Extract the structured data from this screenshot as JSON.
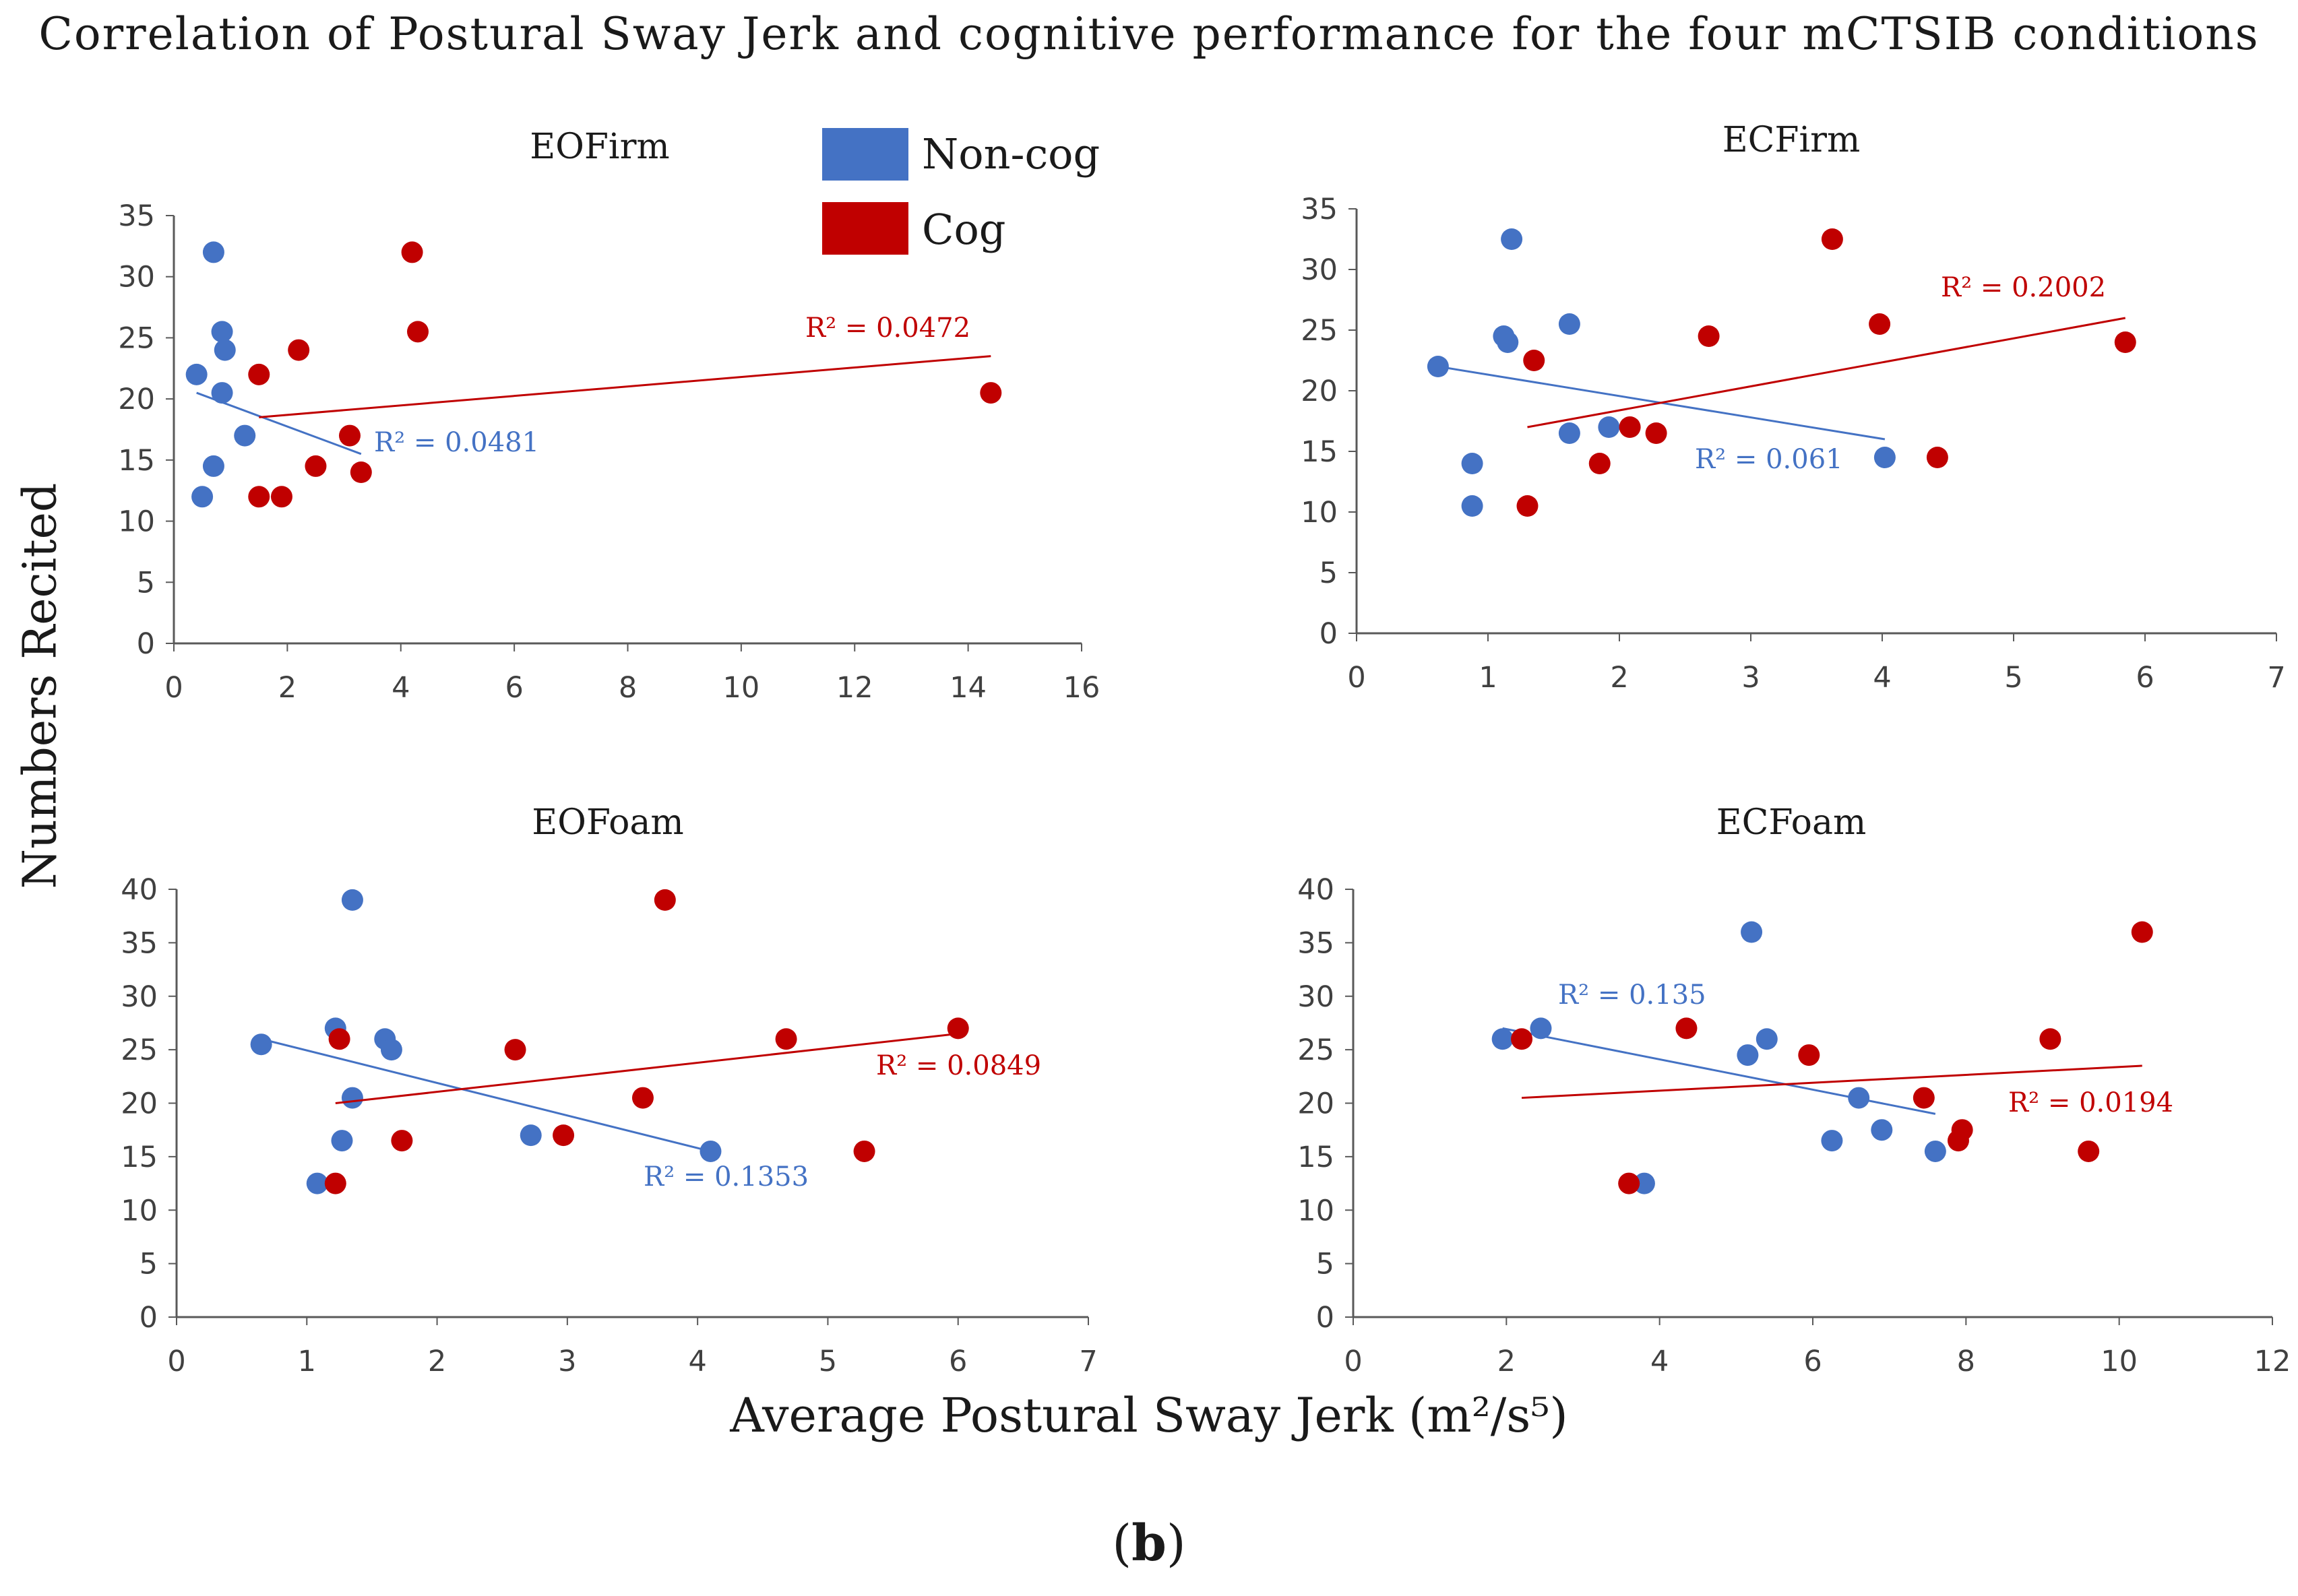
{
  "figure": {
    "title": "Correlation of Postural Sway Jerk and cognitive performance for the four mCTSIB conditions",
    "ylabel": "Numbers Recited",
    "xlabel": "Average Postural Sway Jerk (m²/s⁵)",
    "caption_open": "(",
    "caption_letter": "b",
    "caption_close": ")"
  },
  "colors": {
    "non_cog": "#4472C4",
    "cog": "#C00000",
    "axis": "#595959"
  },
  "legend": {
    "position": "top-center",
    "entries": [
      "Non-cog",
      "Cog"
    ]
  },
  "chart_data": [
    {
      "type": "scatter",
      "title": "EOFirm",
      "xlim": [
        0,
        16
      ],
      "xticks": [
        0,
        2,
        4,
        6,
        8,
        10,
        12,
        14,
        16
      ],
      "ylim": [
        0,
        35
      ],
      "yticks": [
        0,
        5,
        10,
        15,
        20,
        25,
        30,
        35
      ],
      "series": [
        {
          "name": "Non-cog",
          "color": "#4472C4",
          "points": [
            [
              0.4,
              22
            ],
            [
              0.5,
              12
            ],
            [
              0.7,
              14.5
            ],
            [
              0.7,
              32
            ],
            [
              0.85,
              20.5
            ],
            [
              0.85,
              25.5
            ],
            [
              0.9,
              24
            ],
            [
              1.25,
              17
            ]
          ],
          "trendline": {
            "x": [
              0.4,
              3.3
            ],
            "y": [
              20.5,
              15.5
            ]
          },
          "r2_label": "R² = 0.0481"
        },
        {
          "name": "Cog",
          "color": "#C00000",
          "points": [
            [
              1.5,
              22
            ],
            [
              1.5,
              12
            ],
            [
              1.9,
              12
            ],
            [
              2.2,
              24
            ],
            [
              2.5,
              14.5
            ],
            [
              3.1,
              17
            ],
            [
              3.3,
              14
            ],
            [
              4.2,
              32
            ],
            [
              4.3,
              25.5
            ],
            [
              14.4,
              20.5
            ]
          ],
          "trendline": {
            "x": [
              1.5,
              14.4
            ],
            "y": [
              18.5,
              23.5
            ]
          },
          "r2_label": "R² = 0.0472"
        }
      ]
    },
    {
      "type": "scatter",
      "title": "ECFirm",
      "xlim": [
        0,
        7
      ],
      "xticks": [
        0,
        1,
        2,
        3,
        4,
        5,
        6,
        7
      ],
      "ylim": [
        0,
        35
      ],
      "yticks": [
        0,
        5,
        10,
        15,
        20,
        25,
        30,
        35
      ],
      "series": [
        {
          "name": "Non-cog",
          "color": "#4472C4",
          "points": [
            [
              0.62,
              22
            ],
            [
              0.88,
              14
            ],
            [
              0.88,
              10.5
            ],
            [
              1.12,
              24.5
            ],
            [
              1.15,
              24
            ],
            [
              1.18,
              32.5
            ],
            [
              1.62,
              25.5
            ],
            [
              1.62,
              16.5
            ],
            [
              1.92,
              17
            ],
            [
              4.02,
              14.5
            ]
          ],
          "trendline": {
            "x": [
              0.62,
              4.02
            ],
            "y": [
              22,
              16
            ]
          },
          "r2_label": "R² = 0.061"
        },
        {
          "name": "Cog",
          "color": "#C00000",
          "points": [
            [
              1.3,
              10.5
            ],
            [
              1.35,
              22.5
            ],
            [
              1.85,
              14
            ],
            [
              2.08,
              17
            ],
            [
              2.28,
              16.5
            ],
            [
              2.68,
              24.5
            ],
            [
              3.62,
              32.5
            ],
            [
              3.98,
              25.5
            ],
            [
              4.42,
              14.5
            ],
            [
              5.85,
              24
            ]
          ],
          "trendline": {
            "x": [
              1.3,
              5.85
            ],
            "y": [
              17,
              26
            ]
          },
          "r2_label": "R² = 0.2002"
        }
      ]
    },
    {
      "type": "scatter",
      "title": "EOFoam",
      "xlim": [
        0,
        7
      ],
      "xticks": [
        0,
        1,
        2,
        3,
        4,
        5,
        6,
        7
      ],
      "ylim": [
        0,
        40
      ],
      "yticks": [
        0,
        5,
        10,
        15,
        20,
        25,
        30,
        35,
        40
      ],
      "series": [
        {
          "name": "Non-cog",
          "color": "#4472C4",
          "points": [
            [
              0.65,
              25.5
            ],
            [
              1.08,
              12.5
            ],
            [
              1.22,
              27
            ],
            [
              1.27,
              16.5
            ],
            [
              1.35,
              39
            ],
            [
              1.35,
              20.5
            ],
            [
              1.6,
              26
            ],
            [
              1.65,
              25
            ],
            [
              2.72,
              17
            ],
            [
              4.1,
              15.5
            ]
          ],
          "trendline": {
            "x": [
              0.65,
              4.1
            ],
            "y": [
              26,
              15.5
            ]
          },
          "r2_label": "R² = 0.1353"
        },
        {
          "name": "Cog",
          "color": "#C00000",
          "points": [
            [
              1.22,
              12.5
            ],
            [
              1.25,
              26
            ],
            [
              1.73,
              16.5
            ],
            [
              2.6,
              25
            ],
            [
              2.97,
              17
            ],
            [
              3.58,
              20.5
            ],
            [
              3.75,
              39
            ],
            [
              4.68,
              26
            ],
            [
              5.28,
              15.5
            ],
            [
              6.0,
              27
            ]
          ],
          "trendline": {
            "x": [
              1.22,
              6.0
            ],
            "y": [
              20,
              26.5
            ]
          },
          "r2_label": "R² = 0.0849"
        }
      ]
    },
    {
      "type": "scatter",
      "title": "ECFoam",
      "xlim": [
        0,
        12
      ],
      "xticks": [
        0,
        2,
        4,
        6,
        8,
        10,
        12
      ],
      "ylim": [
        0,
        40
      ],
      "yticks": [
        0,
        5,
        10,
        15,
        20,
        25,
        30,
        35,
        40
      ],
      "series": [
        {
          "name": "Non-cog",
          "color": "#4472C4",
          "points": [
            [
              1.95,
              26
            ],
            [
              2.45,
              27
            ],
            [
              3.8,
              12.5
            ],
            [
              5.15,
              24.5
            ],
            [
              5.2,
              36
            ],
            [
              5.4,
              26
            ],
            [
              6.25,
              16.5
            ],
            [
              6.6,
              20.5
            ],
            [
              6.9,
              17.5
            ],
            [
              7.6,
              15.5
            ]
          ],
          "trendline": {
            "x": [
              1.95,
              7.6
            ],
            "y": [
              27,
              19
            ]
          },
          "r2_label": "R² = 0.135"
        },
        {
          "name": "Cog",
          "color": "#C00000",
          "points": [
            [
              2.2,
              26
            ],
            [
              3.6,
              12.5
            ],
            [
              4.35,
              27
            ],
            [
              5.95,
              24.5
            ],
            [
              7.45,
              20.5
            ],
            [
              7.9,
              16.5
            ],
            [
              7.95,
              17.5
            ],
            [
              9.1,
              26
            ],
            [
              9.6,
              15.5
            ],
            [
              10.3,
              36
            ]
          ],
          "trendline": {
            "x": [
              2.2,
              10.3
            ],
            "y": [
              20.5,
              23.5
            ]
          },
          "r2_label": "R² = 0.0194"
        }
      ]
    }
  ]
}
